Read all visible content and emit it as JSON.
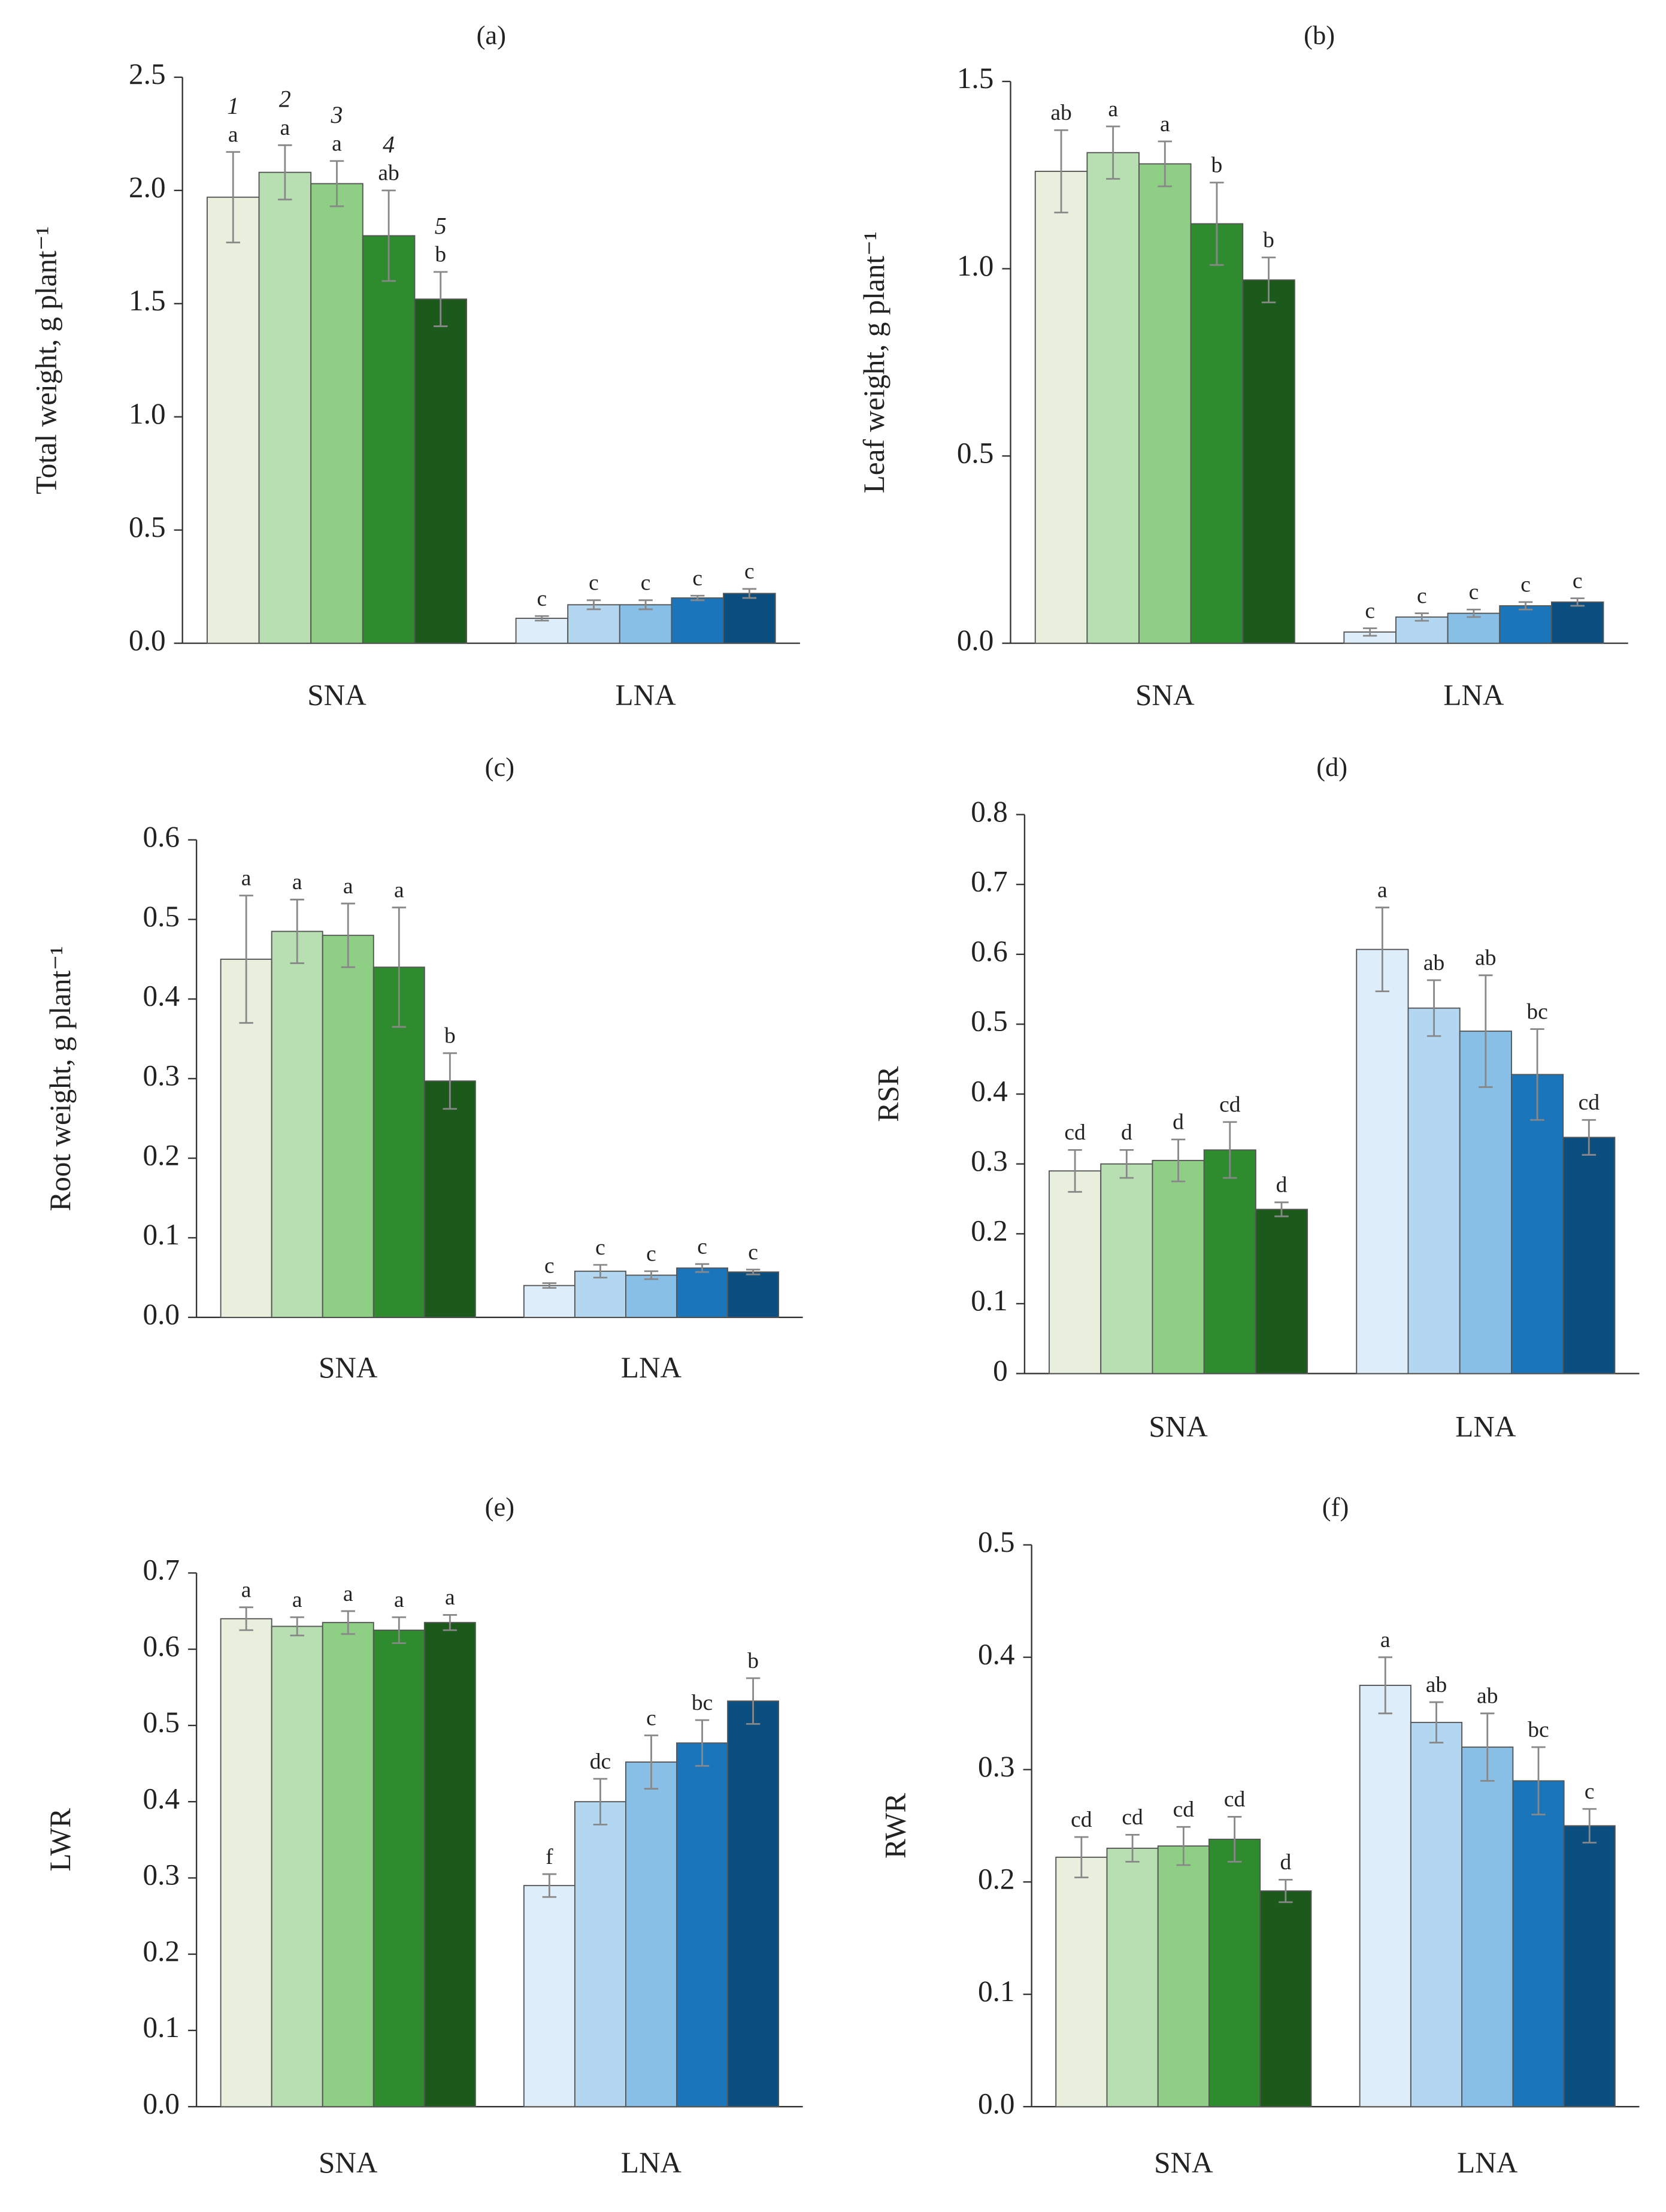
{
  "chart_data": [
    {
      "type": "bar",
      "title": "(a)",
      "ylabel": "Total weight, g plant⁻¹",
      "categories": [
        "SNA",
        "LNA"
      ],
      "ylim": [
        0,
        2.5
      ],
      "yticks": [
        {
          "value": 0,
          "label": "0.0"
        },
        {
          "value": 0.5,
          "label": "0.5"
        },
        {
          "value": 1,
          "label": "1.0"
        },
        {
          "value": 1.5,
          "label": "1.5"
        },
        {
          "value": 2,
          "label": "2.0"
        },
        {
          "value": 2.5,
          "label": "2.5"
        }
      ],
      "series": [
        {
          "name": "1",
          "colors": [
            "#e8f0dd",
            "#ddeefa"
          ],
          "values": [
            1.97,
            0.11
          ],
          "errors": [
            0.2,
            0.01
          ],
          "letters": [
            "a",
            "c"
          ]
        },
        {
          "name": "2",
          "colors": [
            "#b7dfb2",
            "#b3d7f0"
          ],
          "values": [
            2.08,
            0.17
          ],
          "errors": [
            0.12,
            0.02
          ],
          "letters": [
            "a",
            "c"
          ]
        },
        {
          "name": "3",
          "colors": [
            "#8fce85",
            "#87bfe6"
          ],
          "values": [
            2.03,
            0.17
          ],
          "errors": [
            0.1,
            0.02
          ],
          "letters": [
            "a",
            "c"
          ]
        },
        {
          "name": "4",
          "colors": [
            "#2e8b2e",
            "#1a75bb"
          ],
          "values": [
            1.8,
            0.2
          ],
          "errors": [
            0.2,
            0.01
          ],
          "letters": [
            "ab",
            "c"
          ]
        },
        {
          "name": "5",
          "colors": [
            "#1c5a1c",
            "#0b4f80"
          ],
          "values": [
            1.52,
            0.22
          ],
          "errors": [
            0.12,
            0.02
          ],
          "letters": [
            "b",
            "c"
          ]
        }
      ]
    },
    {
      "type": "bar",
      "title": "(b)",
      "ylabel": "Leaf weight, g plant⁻¹",
      "categories": [
        "SNA",
        "LNA"
      ],
      "ylim": [
        0,
        1.5
      ],
      "yticks": [
        {
          "value": 0,
          "label": "0.0"
        },
        {
          "value": 0.5,
          "label": "0.5"
        },
        {
          "value": 1,
          "label": "1.0"
        },
        {
          "value": 1.5,
          "label": "1.5"
        }
      ],
      "series": [
        {
          "colors": [
            "#e8f0dd",
            "#ddeefa"
          ],
          "values": [
            1.26,
            0.03
          ],
          "errors": [
            0.11,
            0.01
          ],
          "letters": [
            "ab",
            "c"
          ]
        },
        {
          "colors": [
            "#b7dfb2",
            "#b3d7f0"
          ],
          "values": [
            1.31,
            0.07
          ],
          "errors": [
            0.07,
            0.01
          ],
          "letters": [
            "a",
            "c"
          ]
        },
        {
          "colors": [
            "#8fce85",
            "#87bfe6"
          ],
          "values": [
            1.28,
            0.08
          ],
          "errors": [
            0.06,
            0.01
          ],
          "letters": [
            "a",
            "c"
          ]
        },
        {
          "colors": [
            "#2e8b2e",
            "#1a75bb"
          ],
          "values": [
            1.12,
            0.1
          ],
          "errors": [
            0.11,
            0.01
          ],
          "letters": [
            "b",
            "c"
          ]
        },
        {
          "colors": [
            "#1c5a1c",
            "#0b4f80"
          ],
          "values": [
            0.97,
            0.11
          ],
          "errors": [
            0.06,
            0.01
          ],
          "letters": [
            "b",
            "c"
          ]
        }
      ]
    },
    {
      "type": "bar",
      "title": "(c)",
      "ylabel": "Root weight, g plant⁻¹",
      "categories": [
        "SNA",
        "LNA"
      ],
      "ylim": [
        0,
        0.6
      ],
      "yticks": [
        {
          "value": 0,
          "label": "0.0"
        },
        0.1,
        0.2,
        0.3,
        0.4,
        0.5,
        0.6
      ],
      "series": [
        {
          "colors": [
            "#e8f0dd",
            "#ddeefa"
          ],
          "values": [
            0.45,
            0.04
          ],
          "errors": [
            0.08,
            0.003
          ],
          "letters": [
            "a",
            "c"
          ]
        },
        {
          "colors": [
            "#b7dfb2",
            "#b3d7f0"
          ],
          "values": [
            0.485,
            0.058
          ],
          "errors": [
            0.04,
            0.008
          ],
          "letters": [
            "a",
            "c"
          ]
        },
        {
          "colors": [
            "#8fce85",
            "#87bfe6"
          ],
          "values": [
            0.48,
            0.053
          ],
          "errors": [
            0.04,
            0.005
          ],
          "letters": [
            "a",
            "c"
          ]
        },
        {
          "colors": [
            "#2e8b2e",
            "#1a75bb"
          ],
          "values": [
            0.44,
            0.062
          ],
          "errors": [
            0.075,
            0.005
          ],
          "letters": [
            "a",
            "c"
          ]
        },
        {
          "colors": [
            "#1c5a1c",
            "#0b4f80"
          ],
          "values": [
            0.297,
            0.057
          ],
          "errors": [
            0.035,
            0.003
          ],
          "letters": [
            "b",
            "c"
          ]
        }
      ]
    },
    {
      "type": "bar",
      "title": "(d)",
      "ylabel": "RSR",
      "categories": [
        "SNA",
        "LNA"
      ],
      "ylim": [
        0,
        0.8
      ],
      "yticks": [
        0,
        0.1,
        0.2,
        0.3,
        0.4,
        0.5,
        0.6,
        0.7,
        0.8
      ],
      "series": [
        {
          "colors": [
            "#e8f0dd",
            "#ddeefa"
          ],
          "values": [
            0.29,
            0.607
          ],
          "errors": [
            0.03,
            0.06
          ],
          "letters": [
            "cd",
            "a"
          ]
        },
        {
          "colors": [
            "#b7dfb2",
            "#b3d7f0"
          ],
          "values": [
            0.3,
            0.523
          ],
          "errors": [
            0.02,
            0.04
          ],
          "letters": [
            "d",
            "ab"
          ]
        },
        {
          "colors": [
            "#8fce85",
            "#87bfe6"
          ],
          "values": [
            0.305,
            0.49
          ],
          "errors": [
            0.03,
            0.08
          ],
          "letters": [
            "d",
            "ab"
          ]
        },
        {
          "colors": [
            "#2e8b2e",
            "#1a75bb"
          ],
          "values": [
            0.32,
            0.428
          ],
          "errors": [
            0.04,
            0.065
          ],
          "letters": [
            "cd",
            "bc"
          ]
        },
        {
          "colors": [
            "#1c5a1c",
            "#0b4f80"
          ],
          "values": [
            0.235,
            0.338
          ],
          "errors": [
            0.01,
            0.025
          ],
          "letters": [
            "d",
            "cd"
          ]
        }
      ]
    },
    {
      "type": "bar",
      "title": "(e)",
      "ylabel": "LWR",
      "categories": [
        "SNA",
        "LNA"
      ],
      "ylim": [
        0,
        0.7
      ],
      "yticks": [
        {
          "value": 0,
          "label": "0.0"
        },
        0.1,
        0.2,
        0.3,
        0.4,
        0.5,
        0.6,
        0.7
      ],
      "series": [
        {
          "colors": [
            "#e8f0dd",
            "#ddeefa"
          ],
          "values": [
            0.64,
            0.29
          ],
          "errors": [
            0.015,
            0.015
          ],
          "letters": [
            "a",
            "f"
          ]
        },
        {
          "colors": [
            "#b7dfb2",
            "#b3d7f0"
          ],
          "values": [
            0.63,
            0.4
          ],
          "errors": [
            0.012,
            0.03
          ],
          "letters": [
            "a",
            "dc"
          ]
        },
        {
          "colors": [
            "#8fce85",
            "#87bfe6"
          ],
          "values": [
            0.635,
            0.452
          ],
          "errors": [
            0.015,
            0.035
          ],
          "letters": [
            "a",
            "c"
          ]
        },
        {
          "colors": [
            "#2e8b2e",
            "#1a75bb"
          ],
          "values": [
            0.625,
            0.477
          ],
          "errors": [
            0.017,
            0.03
          ],
          "letters": [
            "a",
            "bc"
          ]
        },
        {
          "colors": [
            "#1c5a1c",
            "#0b4f80"
          ],
          "values": [
            0.635,
            0.532
          ],
          "errors": [
            0.01,
            0.03
          ],
          "letters": [
            "a",
            "b"
          ]
        }
      ]
    },
    {
      "type": "bar",
      "title": "(f)",
      "ylabel": "RWR",
      "categories": [
        "SNA",
        "LNA"
      ],
      "ylim": [
        0,
        0.5
      ],
      "yticks": [
        {
          "value": 0,
          "label": "0.0"
        },
        0.1,
        0.2,
        0.3,
        0.4,
        0.5
      ],
      "series": [
        {
          "colors": [
            "#e8f0dd",
            "#ddeefa"
          ],
          "values": [
            0.222,
            0.375
          ],
          "errors": [
            0.018,
            0.025
          ],
          "letters": [
            "cd",
            "a"
          ]
        },
        {
          "colors": [
            "#b7dfb2",
            "#b3d7f0"
          ],
          "values": [
            0.23,
            0.342
          ],
          "errors": [
            0.012,
            0.018
          ],
          "letters": [
            "cd",
            "ab"
          ]
        },
        {
          "colors": [
            "#8fce85",
            "#87bfe6"
          ],
          "values": [
            0.232,
            0.32
          ],
          "errors": [
            0.017,
            0.03
          ],
          "letters": [
            "cd",
            "ab"
          ]
        },
        {
          "colors": [
            "#2e8b2e",
            "#1a75bb"
          ],
          "values": [
            0.238,
            0.29
          ],
          "errors": [
            0.02,
            0.03
          ],
          "letters": [
            "cd",
            "bc"
          ]
        },
        {
          "colors": [
            "#1c5a1c",
            "#0b4f80"
          ],
          "values": [
            0.192,
            0.25
          ],
          "errors": [
            0.01,
            0.015
          ],
          "letters": [
            "d",
            "c"
          ]
        }
      ]
    }
  ]
}
